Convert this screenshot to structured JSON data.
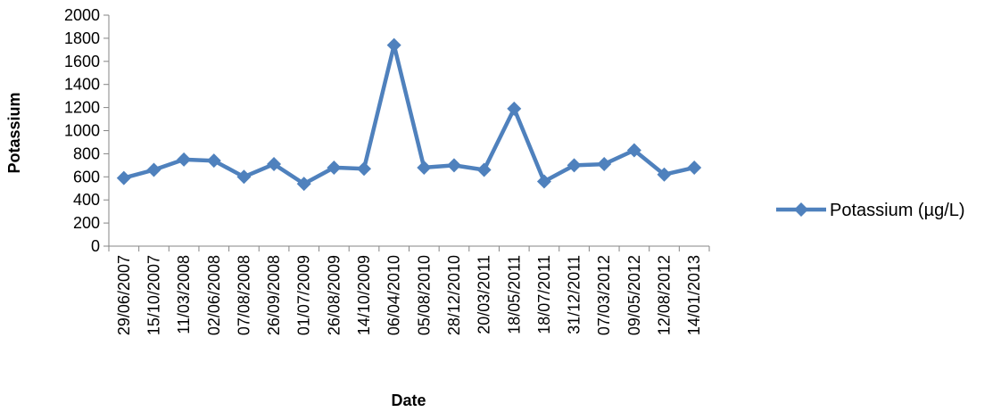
{
  "chart_data": {
    "type": "line",
    "title": "",
    "xlabel": "Date",
    "ylabel": "Potassium",
    "ylim": [
      0,
      2000
    ],
    "y_ticks": [
      "0",
      "200",
      "400",
      "600",
      "800",
      "1000",
      "1200",
      "1400",
      "1600",
      "1800",
      "2000"
    ],
    "categories": [
      "29/06/2007",
      "15/10/2007",
      "11/03/2008",
      "02/06/2008",
      "07/08/2008",
      "26/09/2008",
      "01/07/2009",
      "26/08/2009",
      "14/10/2009",
      "06/04/2010",
      "05/08/2010",
      "28/12/2010",
      "20/03/2011",
      "18/05/2011",
      "18/07/2011",
      "31/12/2011",
      "07/03/2012",
      "09/05/2012",
      "12/08/2012",
      "14/01/2013"
    ],
    "series": [
      {
        "name": "Potassium (µg/L)",
        "color": "#4F81BD",
        "marker": "diamond",
        "values": [
          590,
          660,
          750,
          740,
          600,
          710,
          540,
          680,
          670,
          1740,
          680,
          700,
          660,
          1190,
          560,
          700,
          710,
          830,
          620,
          680
        ]
      }
    ],
    "legend_position": "right",
    "grid": false
  }
}
